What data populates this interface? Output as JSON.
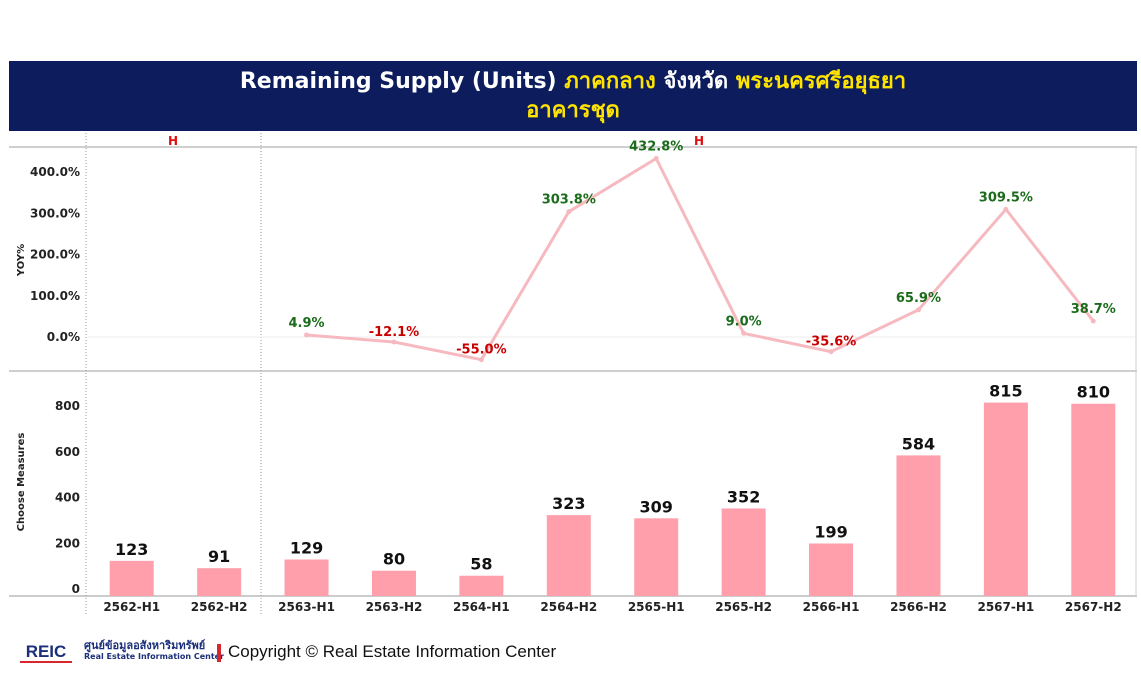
{
  "header": {
    "title_line1_part1": "Remaining Supply (Units)",
    "title_line1_part2": "ภาคกลาง",
    "title_line1_part3": "จังหวัด",
    "title_line1_part4": "พระนครศรีอยุธยา",
    "title_line2": "อาคารชุด"
  },
  "footer": {
    "logo_text": "REIC",
    "logo_thai": "ศูนย์ข้อมูลอสังหาริมทรัพย์",
    "logo_en": "Real Estate Information Center",
    "copyright": "Copyright © Real Estate Information Center"
  },
  "colors": {
    "header_bg": "#0c1c5c",
    "header_accent": "#ffe400",
    "bar": "#ff9fac",
    "line": "#f7b9c0",
    "positive": "#1a6b1a",
    "negative": "#c80000",
    "group_marker": "#e01010"
  },
  "chart_data": {
    "type": "bar",
    "categories": [
      "2562-H1",
      "2562-H2",
      "2563-H1",
      "2563-H2",
      "2564-H1",
      "2564-H2",
      "2565-H1",
      "2565-H2",
      "2566-H1",
      "2566-H2",
      "2567-H1",
      "2567-H2"
    ],
    "group_markers": [
      "H",
      "H"
    ],
    "top_panel": {
      "type": "line",
      "ylabel": "YOY%",
      "yticks": [
        "0.0%",
        "100.0%",
        "200.0%",
        "300.0%",
        "400.0%"
      ],
      "ylim": [
        -60,
        450
      ],
      "values": [
        null,
        null,
        4.9,
        -12.1,
        -55.0,
        303.8,
        432.8,
        9.0,
        -35.6,
        65.9,
        309.5,
        38.7
      ],
      "labels": [
        "",
        "",
        "4.9%",
        "-12.1%",
        "-55.0%",
        "303.8%",
        "432.8%",
        "9.0%",
        "-35.6%",
        "65.9%",
        "309.5%",
        "38.7%"
      ]
    },
    "bottom_panel": {
      "type": "bar",
      "ylabel": "Choose Measures",
      "yticks": [
        "0",
        "200",
        "400",
        "600",
        "800"
      ],
      "ylim": [
        0,
        900
      ],
      "values": [
        123,
        91,
        129,
        80,
        58,
        323,
        309,
        352,
        199,
        584,
        815,
        810
      ]
    }
  }
}
